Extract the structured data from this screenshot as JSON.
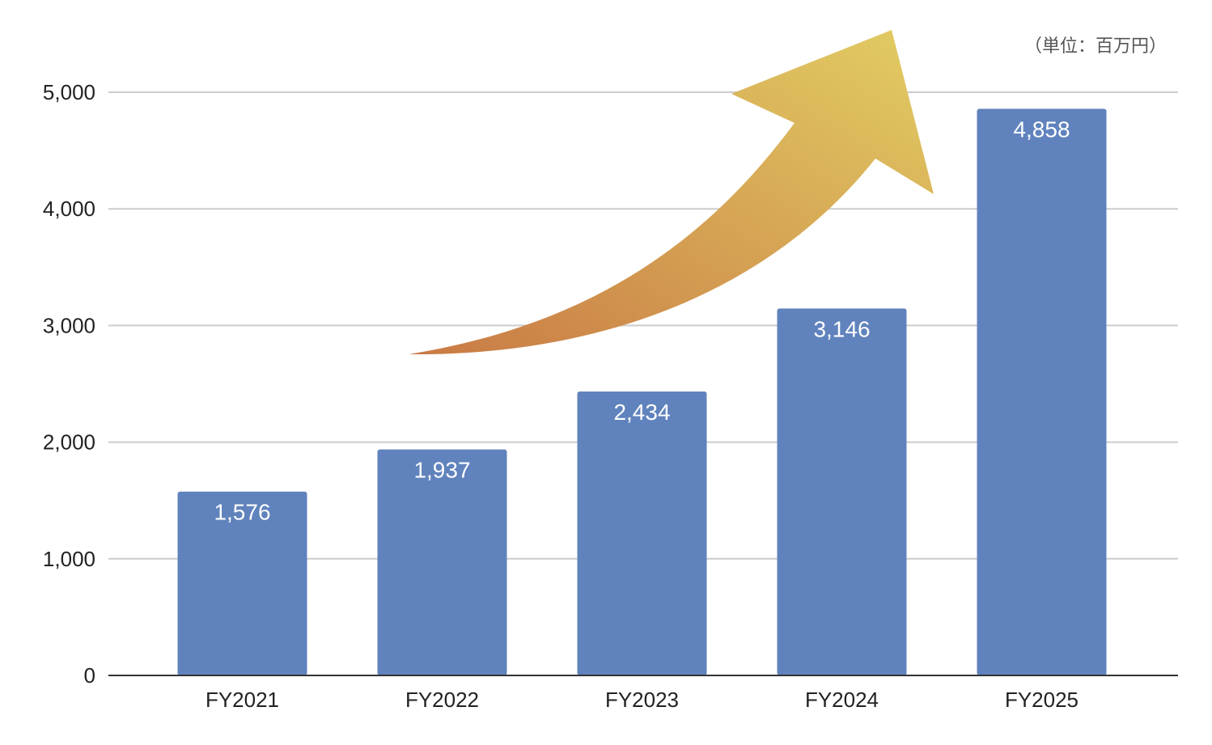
{
  "chart_data": {
    "type": "bar",
    "categories": [
      "FY2021",
      "FY2022",
      "FY2023",
      "FY2024",
      "FY2025"
    ],
    "values": [
      1576,
      1937,
      2434,
      3146,
      4858
    ],
    "value_labels": [
      "1,576",
      "1,937",
      "2,434",
      "3,146",
      "4,858"
    ],
    "unit_label": "（単位：百万円）",
    "yticks": [
      0,
      1000,
      2000,
      3000,
      4000,
      5000
    ],
    "ytick_labels": [
      "0",
      "1,000",
      "2,000",
      "3,000",
      "4,000",
      "5,000"
    ],
    "ylim": [
      0,
      5000
    ],
    "grid": true,
    "bar_color": "#6083bd",
    "arrow": {
      "description": "upward growth arrow",
      "gradient_start": "#c97a45",
      "gradient_end": "#e2cd63"
    }
  }
}
